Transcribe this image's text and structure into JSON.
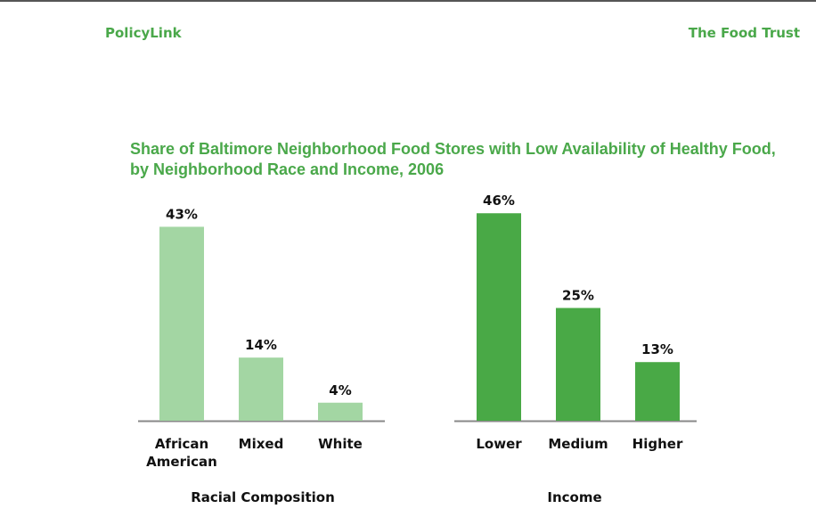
{
  "header": {
    "left_brand": "PolicyLink",
    "right_brand": "The Food Trust"
  },
  "colors": {
    "brand_green": "#4aa84a",
    "race_bar": "#a3d6a3",
    "income_bar": "#49a946",
    "axis": "#888888"
  },
  "chart_data": {
    "type": "bar",
    "title": "Share of Baltimore Neighborhood Food Stores with Low Availability of Healthy Food, by Neighborhood Race and Income, 2006",
    "title_lines": [
      "Share of Baltimore Neighborhood Food Stores with Low Availability of Healthy Food,",
      "by Neighborhood Race and Income, 2006"
    ],
    "unit": "%",
    "grid": false,
    "groups": [
      {
        "name": "Racial Composition",
        "categories": [
          [
            "African",
            "American"
          ],
          [
            "Mixed"
          ],
          [
            "White"
          ]
        ],
        "values": [
          43,
          14,
          4
        ],
        "labels": [
          "43%",
          "14%",
          "4%"
        ]
      },
      {
        "name": "Income",
        "categories": [
          [
            "Lower"
          ],
          [
            "Medium"
          ],
          [
            "Higher"
          ]
        ],
        "values": [
          46,
          25,
          13
        ],
        "labels": [
          "46%",
          "25%",
          "13%"
        ]
      }
    ]
  }
}
